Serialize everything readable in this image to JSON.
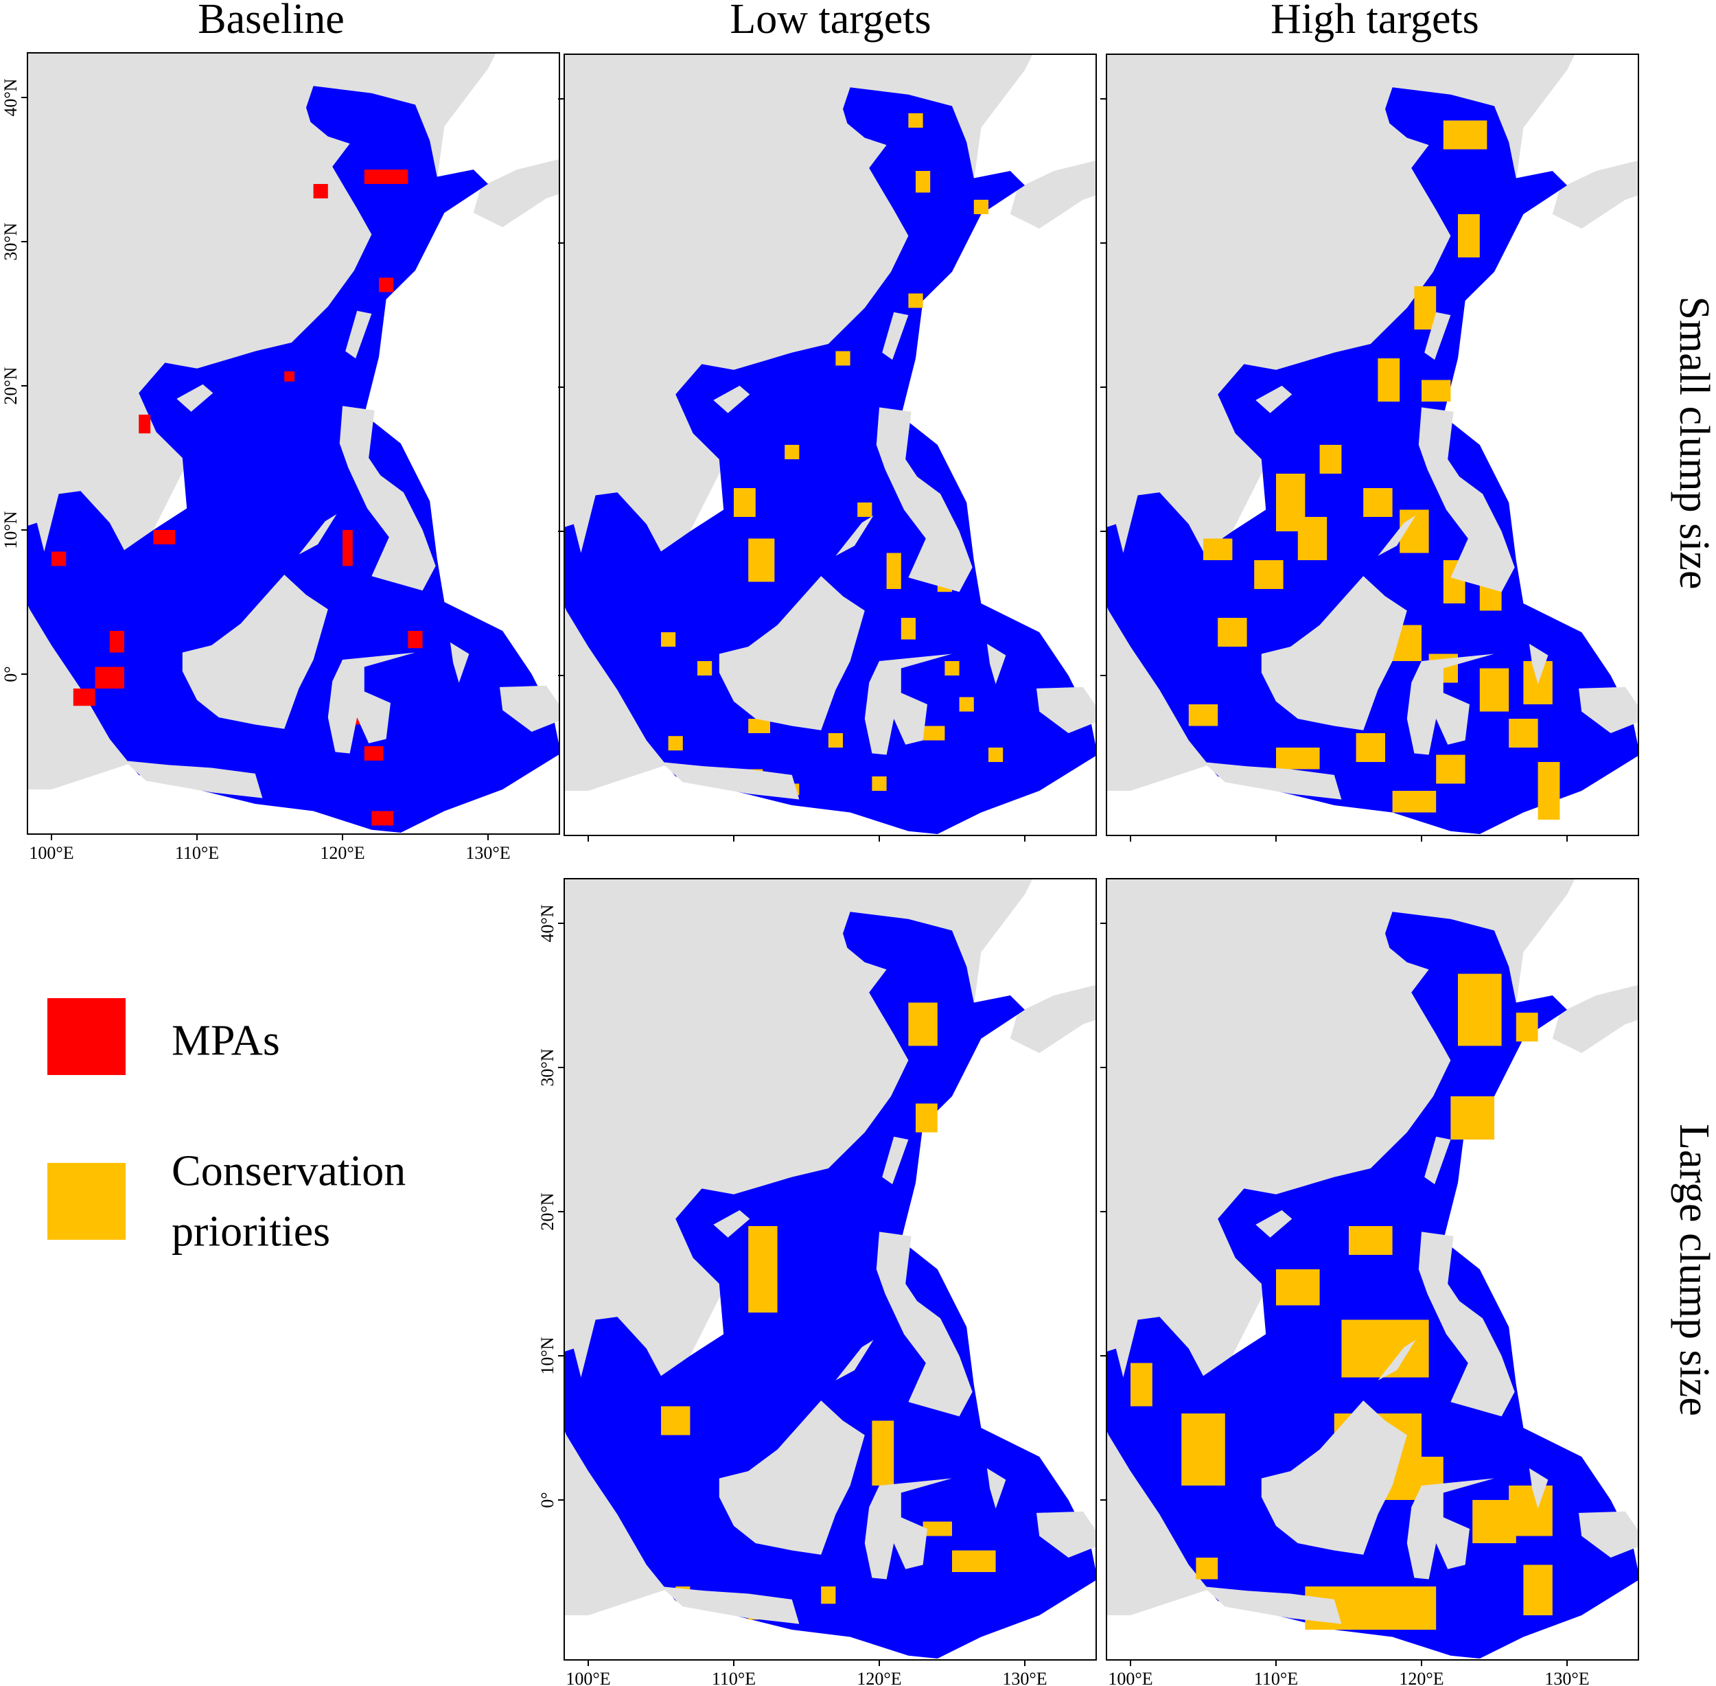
{
  "columns": [
    "Baseline",
    "Low targets",
    "High targets"
  ],
  "rows": [
    "Small clump size",
    "Large clump size"
  ],
  "axes": {
    "x_ticks": [
      "100°E",
      "110°E",
      "120°E",
      "130°E"
    ],
    "y_ticks": [
      "40°N",
      "30°N",
      "20°N",
      "10°N",
      "0°"
    ]
  },
  "legend": [
    {
      "lines": [
        "MPAs"
      ],
      "color": "#ff0000"
    },
    {
      "lines": [
        "Conservation",
        "priorities"
      ],
      "color": "#ffc000"
    }
  ],
  "map_colors": {
    "sea": "#0000ff",
    "land": "#e0e0e0"
  }
}
